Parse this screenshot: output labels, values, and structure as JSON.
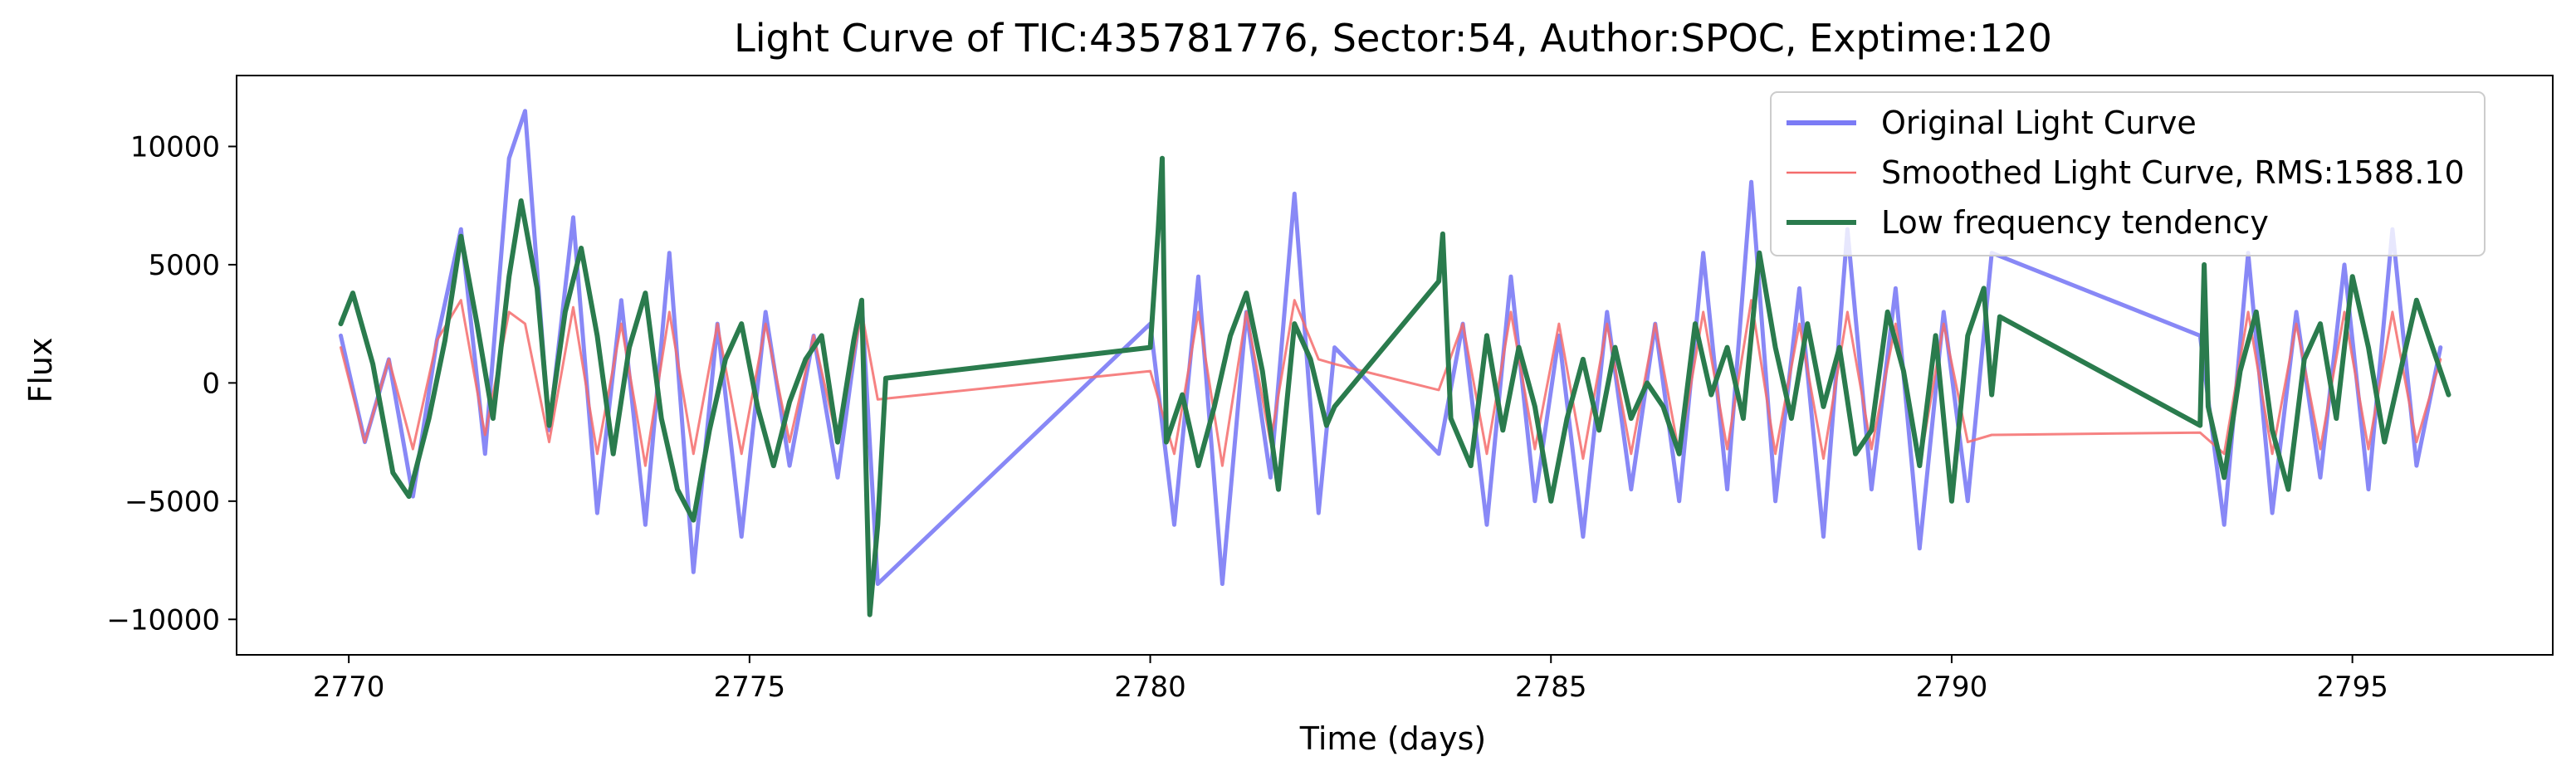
{
  "chart_data": {
    "type": "line",
    "title": "Light Curve of TIC:435781776, Sector:54, Author:SPOC, Exptime:120",
    "xlabel": "Time (days)",
    "ylabel": "Flux",
    "xlim": [
      2768.6,
      2797.5
    ],
    "ylim": [
      -11500,
      13000
    ],
    "xticks": [
      2770,
      2775,
      2780,
      2785,
      2790,
      2795
    ],
    "xtick_labels": [
      "2770",
      "2775",
      "2780",
      "2785",
      "2790",
      "2795"
    ],
    "yticks": [
      -10000,
      -5000,
      0,
      5000,
      10000
    ],
    "ytick_labels": [
      "−10000",
      "−5000",
      "0",
      "5000",
      "10000"
    ],
    "grid": false,
    "legend_position": "top-right",
    "segments": [
      [
        2769.9,
        2776.7
      ],
      [
        2780.0,
        2782.3
      ],
      [
        2783.6,
        2790.6
      ],
      [
        2793.1,
        2796.2
      ]
    ],
    "series": [
      {
        "name": "Original Light Curve",
        "color": "#7b7bf5",
        "key": "original",
        "points": [
          [
            2769.9,
            2000
          ],
          [
            2770.2,
            -2500
          ],
          [
            2770.5,
            1000
          ],
          [
            2770.8,
            -4800
          ],
          [
            2771.1,
            1800
          ],
          [
            2771.4,
            6500
          ],
          [
            2771.7,
            -3000
          ],
          [
            2772.0,
            9500
          ],
          [
            2772.2,
            11500
          ],
          [
            2772.5,
            -2000
          ],
          [
            2772.8,
            7000
          ],
          [
            2773.1,
            -5500
          ],
          [
            2773.4,
            3500
          ],
          [
            2773.7,
            -6000
          ],
          [
            2774.0,
            5500
          ],
          [
            2774.3,
            -8000
          ],
          [
            2774.6,
            2500
          ],
          [
            2774.9,
            -6500
          ],
          [
            2775.2,
            3000
          ],
          [
            2775.5,
            -3500
          ],
          [
            2775.8,
            2000
          ],
          [
            2776.1,
            -4000
          ],
          [
            2776.4,
            3500
          ],
          [
            2776.6,
            -8500
          ],
          [
            2780.0,
            2500
          ],
          [
            2780.3,
            -6000
          ],
          [
            2780.6,
            4500
          ],
          [
            2780.9,
            -8500
          ],
          [
            2781.2,
            3000
          ],
          [
            2781.5,
            -4000
          ],
          [
            2781.8,
            8000
          ],
          [
            2782.1,
            -5500
          ],
          [
            2782.3,
            1500
          ],
          [
            2783.6,
            -3000
          ],
          [
            2783.9,
            2500
          ],
          [
            2784.2,
            -6000
          ],
          [
            2784.5,
            4500
          ],
          [
            2784.8,
            -5000
          ],
          [
            2785.1,
            2000
          ],
          [
            2785.4,
            -6500
          ],
          [
            2785.7,
            3000
          ],
          [
            2786.0,
            -4500
          ],
          [
            2786.3,
            2500
          ],
          [
            2786.6,
            -5000
          ],
          [
            2786.9,
            5500
          ],
          [
            2787.2,
            -4500
          ],
          [
            2787.5,
            8500
          ],
          [
            2787.8,
            -5000
          ],
          [
            2788.1,
            4000
          ],
          [
            2788.4,
            -6500
          ],
          [
            2788.7,
            6500
          ],
          [
            2789.0,
            -4500
          ],
          [
            2789.3,
            4000
          ],
          [
            2789.6,
            -7000
          ],
          [
            2789.9,
            3000
          ],
          [
            2790.2,
            -5000
          ],
          [
            2790.5,
            5500
          ],
          [
            2793.1,
            2000
          ],
          [
            2793.4,
            -6000
          ],
          [
            2793.7,
            5500
          ],
          [
            2794.0,
            -5500
          ],
          [
            2794.3,
            3000
          ],
          [
            2794.6,
            -4000
          ],
          [
            2794.9,
            5000
          ],
          [
            2795.2,
            -4500
          ],
          [
            2795.5,
            6500
          ],
          [
            2795.8,
            -3500
          ],
          [
            2796.1,
            1500
          ]
        ]
      },
      {
        "name": "Smoothed Light Curve, RMS:1588.10",
        "color": "#f46c6c",
        "key": "smoothed",
        "points": [
          [
            2769.9,
            1500
          ],
          [
            2770.2,
            -2500
          ],
          [
            2770.5,
            1000
          ],
          [
            2770.8,
            -2800
          ],
          [
            2771.1,
            1800
          ],
          [
            2771.4,
            3500
          ],
          [
            2771.7,
            -2200
          ],
          [
            2772.0,
            3000
          ],
          [
            2772.2,
            2500
          ],
          [
            2772.5,
            -2500
          ],
          [
            2772.8,
            3200
          ],
          [
            2773.1,
            -3000
          ],
          [
            2773.4,
            2500
          ],
          [
            2773.7,
            -3500
          ],
          [
            2774.0,
            3000
          ],
          [
            2774.3,
            -3000
          ],
          [
            2774.6,
            2500
          ],
          [
            2774.9,
            -3000
          ],
          [
            2775.2,
            2500
          ],
          [
            2775.5,
            -2500
          ],
          [
            2775.8,
            2000
          ],
          [
            2776.1,
            -2500
          ],
          [
            2776.4,
            3000
          ],
          [
            2776.6,
            -700
          ],
          [
            2780.0,
            500
          ],
          [
            2780.3,
            -3000
          ],
          [
            2780.6,
            3000
          ],
          [
            2780.9,
            -3500
          ],
          [
            2781.2,
            3000
          ],
          [
            2781.5,
            -2500
          ],
          [
            2781.8,
            3500
          ],
          [
            2782.1,
            1000
          ],
          [
            2782.3,
            800
          ],
          [
            2783.6,
            -300
          ],
          [
            2783.9,
            2500
          ],
          [
            2784.2,
            -3000
          ],
          [
            2784.5,
            3000
          ],
          [
            2784.8,
            -2800
          ],
          [
            2785.1,
            2500
          ],
          [
            2785.4,
            -3200
          ],
          [
            2785.7,
            2500
          ],
          [
            2786.0,
            -3000
          ],
          [
            2786.3,
            2500
          ],
          [
            2786.6,
            -3000
          ],
          [
            2786.9,
            3000
          ],
          [
            2787.2,
            -2800
          ],
          [
            2787.5,
            3500
          ],
          [
            2787.8,
            -3000
          ],
          [
            2788.1,
            2500
          ],
          [
            2788.4,
            -3200
          ],
          [
            2788.7,
            3000
          ],
          [
            2789.0,
            -2800
          ],
          [
            2789.3,
            2500
          ],
          [
            2789.6,
            -3500
          ],
          [
            2789.9,
            2500
          ],
          [
            2790.2,
            -2500
          ],
          [
            2790.5,
            -2200
          ],
          [
            2793.1,
            -2100
          ],
          [
            2793.4,
            -3000
          ],
          [
            2793.7,
            3000
          ],
          [
            2794.0,
            -3000
          ],
          [
            2794.3,
            2500
          ],
          [
            2794.6,
            -2800
          ],
          [
            2794.9,
            3000
          ],
          [
            2795.2,
            -2800
          ],
          [
            2795.5,
            3000
          ],
          [
            2795.8,
            -2500
          ],
          [
            2796.1,
            1000
          ]
        ]
      },
      {
        "name": "Low frequency tendency",
        "color": "#2a7b4d",
        "key": "trend",
        "points": [
          [
            2769.9,
            2500
          ],
          [
            2770.05,
            3800
          ],
          [
            2770.3,
            800
          ],
          [
            2770.55,
            -3800
          ],
          [
            2770.75,
            -4800
          ],
          [
            2771.0,
            -1500
          ],
          [
            2771.2,
            1800
          ],
          [
            2771.4,
            6200
          ],
          [
            2771.6,
            2500
          ],
          [
            2771.8,
            -1500
          ],
          [
            2772.0,
            4500
          ],
          [
            2772.15,
            7700
          ],
          [
            2772.35,
            4000
          ],
          [
            2772.5,
            -1800
          ],
          [
            2772.7,
            3000
          ],
          [
            2772.9,
            5700
          ],
          [
            2773.1,
            2000
          ],
          [
            2773.3,
            -3000
          ],
          [
            2773.5,
            1500
          ],
          [
            2773.7,
            3800
          ],
          [
            2773.9,
            -1500
          ],
          [
            2774.1,
            -4500
          ],
          [
            2774.3,
            -5800
          ],
          [
            2774.5,
            -2000
          ],
          [
            2774.7,
            1000
          ],
          [
            2774.9,
            2500
          ],
          [
            2775.1,
            -1000
          ],
          [
            2775.3,
            -3500
          ],
          [
            2775.5,
            -800
          ],
          [
            2775.7,
            1000
          ],
          [
            2775.9,
            2000
          ],
          [
            2776.1,
            -2500
          ],
          [
            2776.3,
            1800
          ],
          [
            2776.4,
            3500
          ],
          [
            2776.5,
            -9800
          ],
          [
            2776.6,
            -6000
          ],
          [
            2776.7,
            200
          ],
          [
            2780.0,
            1500
          ],
          [
            2780.1,
            6500
          ],
          [
            2780.15,
            9500
          ],
          [
            2780.2,
            -2500
          ],
          [
            2780.4,
            -500
          ],
          [
            2780.6,
            -3500
          ],
          [
            2780.8,
            -1000
          ],
          [
            2781.0,
            2000
          ],
          [
            2781.2,
            3800
          ],
          [
            2781.4,
            500
          ],
          [
            2781.6,
            -4500
          ],
          [
            2781.8,
            2500
          ],
          [
            2782.0,
            1000
          ],
          [
            2782.2,
            -1800
          ],
          [
            2782.3,
            -1000
          ],
          [
            2783.6,
            4300
          ],
          [
            2783.65,
            6300
          ],
          [
            2783.75,
            -1500
          ],
          [
            2784.0,
            -3500
          ],
          [
            2784.2,
            2000
          ],
          [
            2784.4,
            -2000
          ],
          [
            2784.6,
            1500
          ],
          [
            2784.8,
            -1000
          ],
          [
            2785.0,
            -5000
          ],
          [
            2785.2,
            -1500
          ],
          [
            2785.4,
            1000
          ],
          [
            2785.6,
            -2000
          ],
          [
            2785.8,
            1500
          ],
          [
            2786.0,
            -1500
          ],
          [
            2786.2,
            0
          ],
          [
            2786.4,
            -1000
          ],
          [
            2786.6,
            -3000
          ],
          [
            2786.8,
            2500
          ],
          [
            2787.0,
            -500
          ],
          [
            2787.2,
            1500
          ],
          [
            2787.4,
            -1500
          ],
          [
            2787.6,
            5500
          ],
          [
            2787.8,
            1500
          ],
          [
            2788.0,
            -1500
          ],
          [
            2788.2,
            2500
          ],
          [
            2788.4,
            -1000
          ],
          [
            2788.6,
            1500
          ],
          [
            2788.8,
            -3000
          ],
          [
            2789.0,
            -2000
          ],
          [
            2789.2,
            3000
          ],
          [
            2789.4,
            500
          ],
          [
            2789.6,
            -3500
          ],
          [
            2789.8,
            2000
          ],
          [
            2790.0,
            -5000
          ],
          [
            2790.2,
            2000
          ],
          [
            2790.4,
            4000
          ],
          [
            2790.5,
            -500
          ],
          [
            2790.6,
            2800
          ],
          [
            2793.1,
            -1800
          ],
          [
            2793.15,
            5000
          ],
          [
            2793.2,
            -1000
          ],
          [
            2793.4,
            -4000
          ],
          [
            2793.6,
            500
          ],
          [
            2793.8,
            3000
          ],
          [
            2794.0,
            -2000
          ],
          [
            2794.2,
            -4500
          ],
          [
            2794.4,
            1000
          ],
          [
            2794.6,
            2500
          ],
          [
            2794.8,
            -1500
          ],
          [
            2795.0,
            4500
          ],
          [
            2795.2,
            1500
          ],
          [
            2795.4,
            -2500
          ],
          [
            2795.6,
            500
          ],
          [
            2795.8,
            3500
          ],
          [
            2796.0,
            1500
          ],
          [
            2796.2,
            -500
          ]
        ]
      }
    ]
  }
}
